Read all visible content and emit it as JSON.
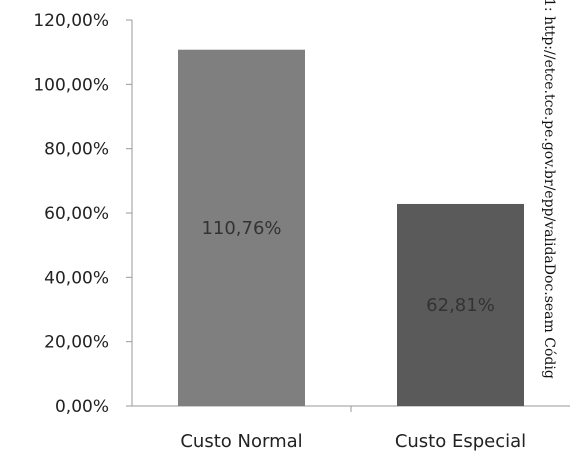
{
  "chart_data": {
    "type": "bar",
    "categories": [
      "Custo Normal",
      "Custo Especial"
    ],
    "series": [
      {
        "values": [
          110.76,
          62.81
        ],
        "colors": [
          "#7f7f7f",
          "#5a5a5a"
        ]
      }
    ],
    "data_labels": [
      "110,76%",
      "62,81%"
    ],
    "title": "",
    "xlabel": "",
    "ylabel": "",
    "ylim": [
      0,
      120
    ],
    "yticks": [
      {
        "value": 0,
        "label": "0,00%"
      },
      {
        "value": 20,
        "label": "20,00%"
      },
      {
        "value": 40,
        "label": "40,00%"
      },
      {
        "value": 60,
        "label": "60,00%"
      },
      {
        "value": 80,
        "label": "80,00%"
      },
      {
        "value": 100,
        "label": "100,00%"
      },
      {
        "value": 120,
        "label": "120,00%"
      }
    ],
    "grid": false,
    "legend": "none"
  },
  "side_text": "1: http://etce.tce.pe.gov.br/epp/validaDoc.seam Códig"
}
